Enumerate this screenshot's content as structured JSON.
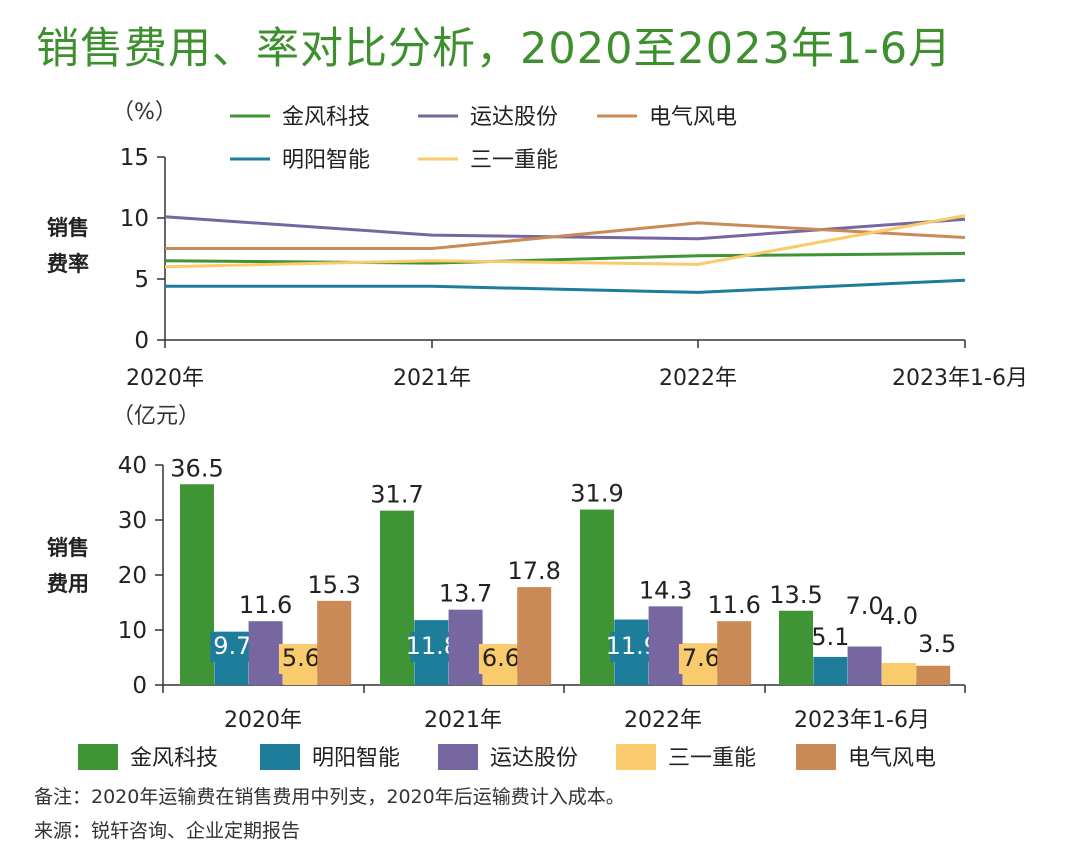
{
  "title": "销售费用、率对比分析，2020至2023年1-6月",
  "colors": {
    "goldwind": "#3f9436",
    "mingyang": "#1d7d9a",
    "yunda": "#7767a0",
    "sany": "#f9cb6c",
    "electric": "#c98a56"
  },
  "chart_data": [
    {
      "type": "line",
      "unit": "（%）",
      "ylabel": "销售\n费率",
      "categories": [
        "2020年",
        "2021年",
        "2022年",
        "2023年1-6月"
      ],
      "ylim": [
        0,
        15
      ],
      "yticks": [
        0,
        5,
        10,
        15
      ],
      "legend": [
        "金风科技",
        "运达股份",
        "电气风电",
        "明阳智能",
        "三一重能"
      ],
      "series": [
        {
          "name": "金风科技",
          "color_key": "goldwind",
          "values": [
            6.5,
            6.3,
            6.9,
            7.1
          ]
        },
        {
          "name": "运达股份",
          "color_key": "yunda",
          "values": [
            10.1,
            8.6,
            8.3,
            9.9
          ]
        },
        {
          "name": "电气风电",
          "color_key": "electric",
          "values": [
            7.5,
            7.5,
            9.6,
            8.4
          ]
        },
        {
          "name": "明阳智能",
          "color_key": "mingyang",
          "values": [
            4.4,
            4.4,
            3.9,
            4.9
          ]
        },
        {
          "name": "三一重能",
          "color_key": "sany",
          "values": [
            6.0,
            6.5,
            6.2,
            10.2
          ]
        }
      ]
    },
    {
      "type": "bar",
      "unit": "（亿元）",
      "ylabel": "销售\n费用",
      "categories": [
        "2020年",
        "2021年",
        "2022年",
        "2023年1-6月"
      ],
      "ylim": [
        0,
        40
      ],
      "yticks": [
        0,
        10,
        20,
        30,
        40
      ],
      "legend": [
        "金风科技",
        "明阳智能",
        "运达股份",
        "三一重能",
        "电气风电"
      ],
      "series": [
        {
          "name": "金风科技",
          "color_key": "goldwind",
          "values": [
            36.5,
            31.7,
            31.9,
            13.5
          ],
          "labels": [
            "36.5",
            "31.7",
            "31.9",
            "13.5"
          ]
        },
        {
          "name": "明阳智能",
          "color_key": "mingyang",
          "values": [
            9.7,
            11.8,
            11.9,
            5.1
          ],
          "labels": [
            "9.7",
            "11.8",
            "11.9",
            "5.1"
          ]
        },
        {
          "name": "运达股份",
          "color_key": "yunda",
          "values": [
            11.6,
            13.7,
            14.3,
            7.0
          ],
          "labels": [
            "11.6",
            "13.7",
            "14.3",
            "7.0"
          ]
        },
        {
          "name": "三一重能",
          "color_key": "sany",
          "values": [
            5.6,
            6.6,
            7.6,
            4.0
          ],
          "labels": [
            "5.6",
            "6.6",
            "7.6",
            "4.0"
          ]
        },
        {
          "name": "电气风电",
          "color_key": "electric",
          "values": [
            15.3,
            17.8,
            11.6,
            3.5
          ],
          "labels": [
            "15.3",
            "17.8",
            "11.6",
            "3.5"
          ]
        }
      ]
    }
  ],
  "notes": {
    "remark": "备注：2020年运输费在销售费用中列支，2020年后运输费计入成本。",
    "source": "来源：锐轩咨询、企业定期报告"
  }
}
